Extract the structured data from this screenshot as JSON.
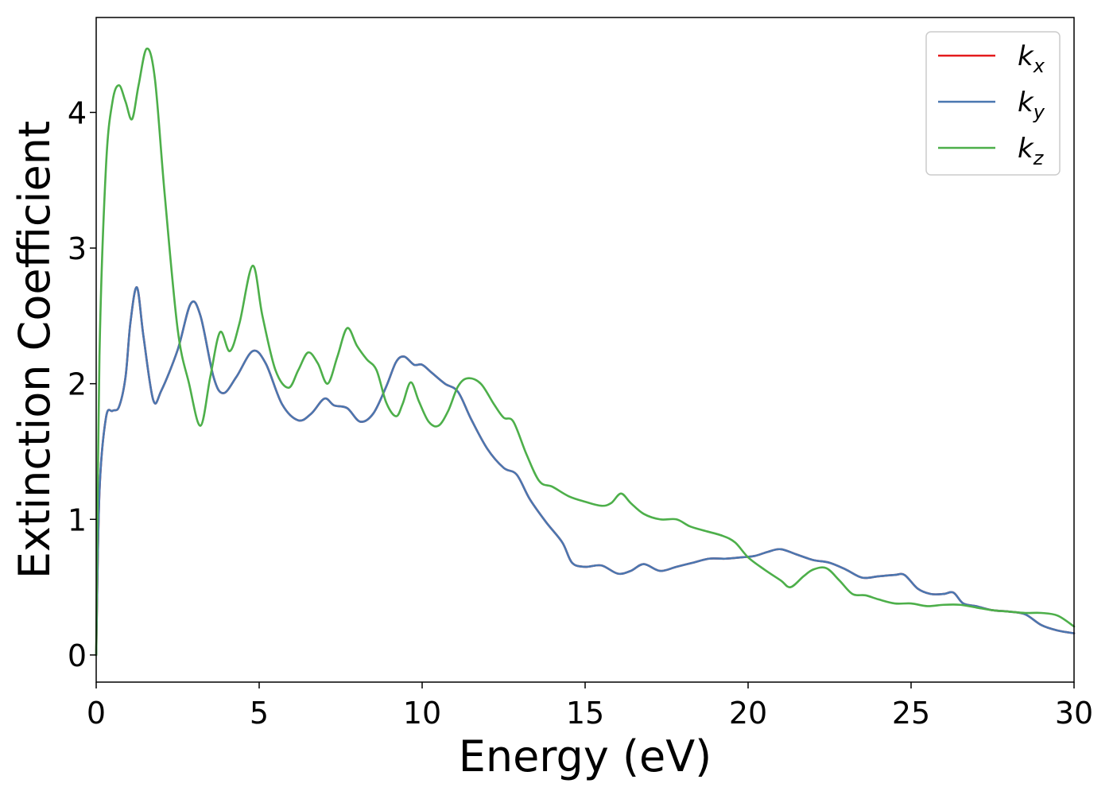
{
  "chart_data": {
    "type": "line",
    "xlabel": "Energy (eV)",
    "ylabel": "Extinction Coefficient",
    "xlim": [
      0,
      30
    ],
    "ylim": [
      -0.2,
      4.7
    ],
    "xticks": [
      0,
      5,
      10,
      15,
      20,
      25,
      30
    ],
    "xtick_labels": [
      "0",
      "5",
      "10",
      "15",
      "20",
      "25",
      "30"
    ],
    "yticks": [
      0,
      1,
      2,
      3,
      4
    ],
    "ytick_labels": [
      "0",
      "1",
      "2",
      "3",
      "4"
    ],
    "grid": false,
    "legend_position": "top-right",
    "series": [
      {
        "name": "k_x",
        "legend_base": "k",
        "legend_sub": "x",
        "color": "#e41a1c",
        "x": [
          0,
          0.1,
          0.3,
          0.5,
          0.7,
          0.9,
          1.05,
          1.25,
          1.45,
          1.75,
          2.0,
          2.5,
          2.9,
          3.2,
          3.6,
          3.9,
          4.3,
          4.8,
          5.2,
          5.7,
          6.2,
          6.6,
          7.0,
          7.3,
          7.7,
          8.1,
          8.5,
          8.9,
          9.2,
          9.45,
          9.75,
          10.0,
          10.3,
          10.7,
          11.1,
          11.5,
          12.0,
          12.5,
          12.9,
          13.3,
          13.8,
          14.3,
          14.6,
          15.0,
          15.5,
          16.0,
          16.4,
          16.8,
          17.3,
          17.8,
          18.3,
          18.8,
          19.3,
          19.8,
          20.2,
          20.6,
          21.0,
          21.5,
          22.0,
          22.5,
          23.0,
          23.5,
          24.0,
          24.5,
          24.8,
          25.2,
          25.6,
          26.0,
          26.3,
          26.6,
          27.0,
          27.5,
          28.0,
          28.5,
          29.0,
          29.5,
          30.0
        ],
        "values": [
          0,
          1.2,
          1.75,
          1.8,
          1.83,
          2.05,
          2.45,
          2.71,
          2.35,
          1.88,
          1.95,
          2.25,
          2.59,
          2.5,
          2.05,
          1.93,
          2.05,
          2.24,
          2.15,
          1.85,
          1.73,
          1.78,
          1.89,
          1.84,
          1.82,
          1.72,
          1.78,
          1.98,
          2.16,
          2.2,
          2.14,
          2.14,
          2.08,
          2.0,
          1.94,
          1.74,
          1.52,
          1.38,
          1.33,
          1.15,
          0.98,
          0.83,
          0.68,
          0.65,
          0.66,
          0.6,
          0.62,
          0.67,
          0.62,
          0.65,
          0.68,
          0.71,
          0.71,
          0.72,
          0.73,
          0.76,
          0.78,
          0.74,
          0.7,
          0.68,
          0.63,
          0.57,
          0.58,
          0.59,
          0.59,
          0.49,
          0.45,
          0.45,
          0.46,
          0.38,
          0.36,
          0.33,
          0.32,
          0.3,
          0.22,
          0.18,
          0.16
        ]
      },
      {
        "name": "k_y",
        "legend_base": "k",
        "legend_sub": "y",
        "color": "#4a77b0",
        "x": [
          0,
          0.1,
          0.3,
          0.5,
          0.7,
          0.9,
          1.05,
          1.25,
          1.45,
          1.75,
          2.0,
          2.5,
          2.9,
          3.2,
          3.6,
          3.9,
          4.3,
          4.8,
          5.2,
          5.7,
          6.2,
          6.6,
          7.0,
          7.3,
          7.7,
          8.1,
          8.5,
          8.9,
          9.2,
          9.45,
          9.75,
          10.0,
          10.3,
          10.7,
          11.1,
          11.5,
          12.0,
          12.5,
          12.9,
          13.3,
          13.8,
          14.3,
          14.6,
          15.0,
          15.5,
          16.0,
          16.4,
          16.8,
          17.3,
          17.8,
          18.3,
          18.8,
          19.3,
          19.8,
          20.2,
          20.6,
          21.0,
          21.5,
          22.0,
          22.5,
          23.0,
          23.5,
          24.0,
          24.5,
          24.8,
          25.2,
          25.6,
          26.0,
          26.3,
          26.6,
          27.0,
          27.5,
          28.0,
          28.5,
          29.0,
          29.5,
          30.0
        ],
        "values": [
          0,
          1.2,
          1.75,
          1.8,
          1.83,
          2.05,
          2.45,
          2.71,
          2.35,
          1.88,
          1.95,
          2.25,
          2.59,
          2.5,
          2.05,
          1.93,
          2.05,
          2.24,
          2.15,
          1.85,
          1.73,
          1.78,
          1.89,
          1.84,
          1.82,
          1.72,
          1.78,
          1.98,
          2.16,
          2.2,
          2.14,
          2.14,
          2.08,
          2.0,
          1.94,
          1.74,
          1.52,
          1.38,
          1.33,
          1.15,
          0.98,
          0.83,
          0.68,
          0.65,
          0.66,
          0.6,
          0.62,
          0.67,
          0.62,
          0.65,
          0.68,
          0.71,
          0.71,
          0.72,
          0.73,
          0.76,
          0.78,
          0.74,
          0.7,
          0.68,
          0.63,
          0.57,
          0.58,
          0.59,
          0.59,
          0.49,
          0.45,
          0.45,
          0.46,
          0.38,
          0.36,
          0.33,
          0.32,
          0.3,
          0.22,
          0.18,
          0.16
        ]
      },
      {
        "name": "k_z",
        "legend_base": "k",
        "legend_sub": "z",
        "color": "#4daf4a",
        "x": [
          0,
          0.1,
          0.3,
          0.5,
          0.7,
          0.9,
          1.1,
          1.3,
          1.55,
          1.8,
          2.1,
          2.5,
          2.85,
          3.2,
          3.5,
          3.8,
          4.1,
          4.4,
          4.8,
          5.1,
          5.5,
          5.9,
          6.2,
          6.5,
          6.8,
          7.1,
          7.4,
          7.7,
          8.0,
          8.3,
          8.6,
          8.9,
          9.2,
          9.4,
          9.65,
          9.9,
          10.2,
          10.5,
          10.8,
          11.1,
          11.4,
          11.8,
          12.2,
          12.5,
          12.8,
          13.2,
          13.6,
          14.0,
          14.5,
          15.0,
          15.5,
          15.8,
          16.1,
          16.4,
          16.8,
          17.3,
          17.8,
          18.2,
          18.6,
          19.2,
          19.6,
          20.0,
          20.5,
          21.0,
          21.3,
          21.7,
          22.0,
          22.4,
          22.8,
          23.2,
          23.6,
          24.0,
          24.5,
          25.0,
          25.5,
          26.0,
          26.5,
          27.0,
          27.5,
          28.0,
          28.5,
          29.0,
          29.5,
          30.0
        ],
        "values": [
          0,
          2.2,
          3.6,
          4.08,
          4.2,
          4.08,
          3.95,
          4.2,
          4.47,
          4.25,
          3.4,
          2.4,
          2.0,
          1.69,
          2.05,
          2.38,
          2.24,
          2.45,
          2.87,
          2.5,
          2.1,
          1.97,
          2.1,
          2.23,
          2.15,
          2.0,
          2.2,
          2.41,
          2.28,
          2.18,
          2.1,
          1.86,
          1.76,
          1.85,
          2.01,
          1.87,
          1.72,
          1.69,
          1.8,
          1.98,
          2.04,
          2.0,
          1.85,
          1.75,
          1.72,
          1.48,
          1.28,
          1.24,
          1.17,
          1.13,
          1.1,
          1.12,
          1.19,
          1.12,
          1.04,
          1.0,
          1.0,
          0.95,
          0.92,
          0.88,
          0.83,
          0.72,
          0.63,
          0.55,
          0.5,
          0.58,
          0.63,
          0.64,
          0.55,
          0.45,
          0.44,
          0.41,
          0.38,
          0.38,
          0.36,
          0.37,
          0.37,
          0.35,
          0.33,
          0.32,
          0.31,
          0.31,
          0.29,
          0.21
        ]
      }
    ]
  }
}
